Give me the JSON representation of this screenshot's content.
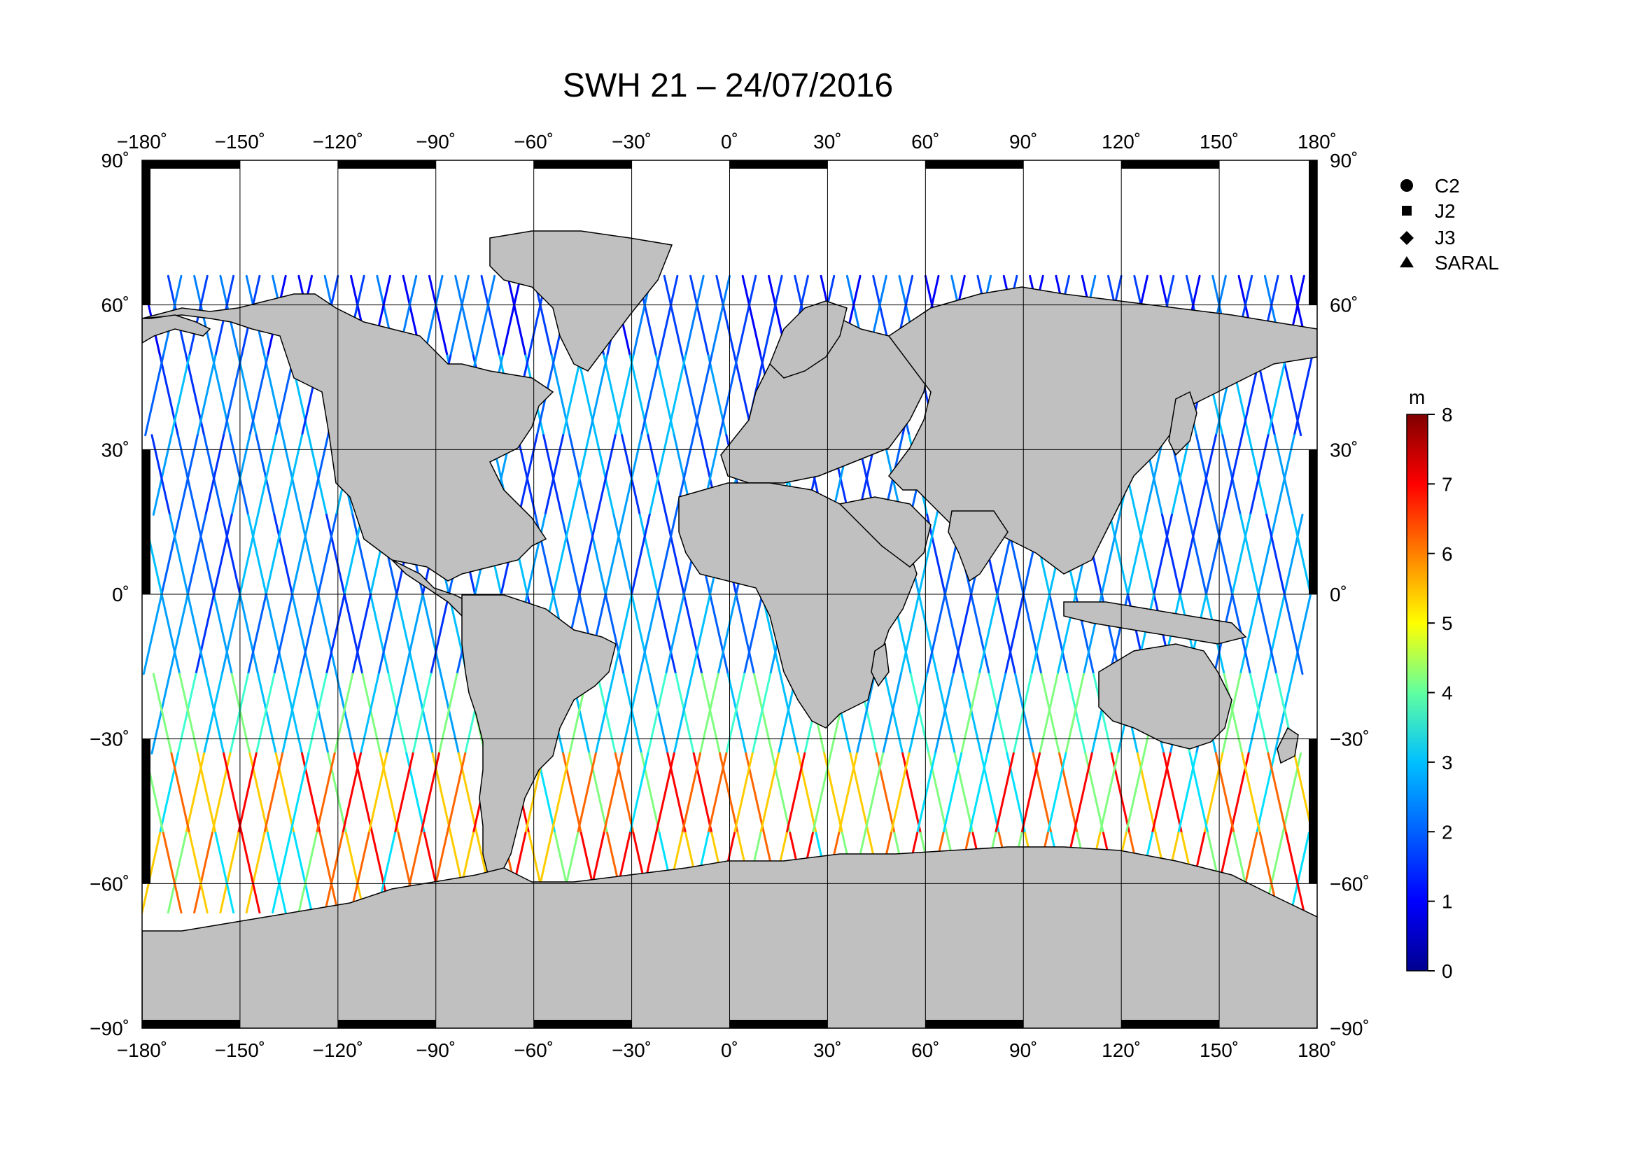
{
  "title": "SWH 21 – 24/07/2016",
  "lon_ticks": [
    "−180˚",
    "−150˚",
    "−120˚",
    "−90˚",
    "−60˚",
    "−30˚",
    "0˚",
    "30˚",
    "60˚",
    "90˚",
    "120˚",
    "150˚",
    "180˚"
  ],
  "lat_ticks": [
    "90˚",
    "60˚",
    "30˚",
    "0˚",
    "−30˚",
    "−60˚",
    "−90˚"
  ],
  "legend": [
    {
      "label": "C2",
      "marker": "circle"
    },
    {
      "label": "J2",
      "marker": "square"
    },
    {
      "label": "J3",
      "marker": "diamond"
    },
    {
      "label": "SARAL",
      "marker": "triangle"
    }
  ],
  "colorbar": {
    "unit": "m",
    "ticks": [
      "0",
      "1",
      "2",
      "3",
      "4",
      "5",
      "6",
      "7",
      "8"
    ],
    "min": 0,
    "max": 8,
    "colors": [
      "#00008f",
      "#0000ff",
      "#0080ff",
      "#00ffff",
      "#80ff80",
      "#ffff00",
      "#ff8000",
      "#ff0000",
      "#800000"
    ]
  },
  "colors": {
    "land": "#c0c0c0",
    "ocean": "#ffffff",
    "grid": "#000000"
  }
}
